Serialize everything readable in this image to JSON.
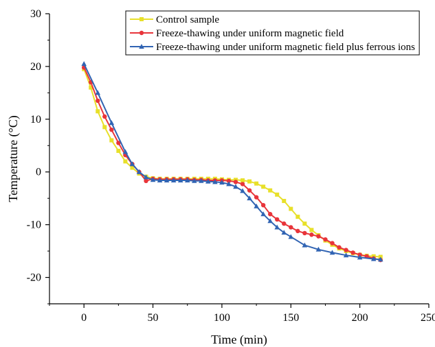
{
  "chart_data": {
    "type": "line",
    "title": "",
    "xlabel": "Time (min)",
    "ylabel": "Temperature (°C)",
    "xlim": [
      -25,
      250
    ],
    "ylim": [
      -25,
      30
    ],
    "xticks": [
      0,
      50,
      100,
      150,
      200,
      250
    ],
    "yticks": [
      -20,
      -10,
      0,
      10,
      20,
      30
    ],
    "grid": false,
    "legend_position": "top-right",
    "series": [
      {
        "name": "Control sample",
        "color": "#e8e02a",
        "marker": "square",
        "x": [
          0,
          5,
          10,
          15,
          20,
          25,
          30,
          35,
          40,
          45,
          50,
          55,
          60,
          65,
          70,
          75,
          80,
          85,
          90,
          95,
          100,
          105,
          110,
          115,
          120,
          125,
          130,
          135,
          140,
          145,
          150,
          155,
          160,
          165,
          170,
          175,
          180,
          185,
          190,
          195,
          200,
          205,
          210,
          215
        ],
        "y": [
          19.5,
          16.0,
          11.5,
          8.5,
          6.0,
          4.0,
          2.0,
          0.8,
          -0.3,
          -0.9,
          -1.2,
          -1.3,
          -1.3,
          -1.3,
          -1.3,
          -1.3,
          -1.3,
          -1.3,
          -1.3,
          -1.3,
          -1.4,
          -1.5,
          -1.5,
          -1.6,
          -1.8,
          -2.2,
          -2.8,
          -3.5,
          -4.3,
          -5.5,
          -7.0,
          -8.5,
          -9.8,
          -11.0,
          -12.0,
          -13.0,
          -13.8,
          -14.5,
          -15.0,
          -15.4,
          -15.7,
          -15.9,
          -16.0,
          -16.1
        ]
      },
      {
        "name": "Freeze-thawing under uniform magnetic field",
        "color": "#e8343a",
        "marker": "circle",
        "x": [
          0,
          5,
          10,
          15,
          20,
          25,
          30,
          35,
          40,
          45,
          50,
          55,
          60,
          65,
          70,
          75,
          80,
          85,
          90,
          95,
          100,
          105,
          110,
          115,
          120,
          125,
          130,
          135,
          140,
          145,
          150,
          155,
          160,
          165,
          170,
          175,
          180,
          185,
          190,
          195,
          200,
          205,
          210,
          215
        ],
        "y": [
          19.8,
          17.0,
          13.5,
          10.5,
          8.0,
          5.5,
          3.2,
          1.5,
          0.0,
          -1.7,
          -1.3,
          -1.4,
          -1.4,
          -1.4,
          -1.4,
          -1.4,
          -1.5,
          -1.5,
          -1.6,
          -1.6,
          -1.6,
          -1.7,
          -1.9,
          -2.3,
          -3.5,
          -4.8,
          -6.3,
          -8.0,
          -9.0,
          -9.8,
          -10.5,
          -11.2,
          -11.6,
          -11.9,
          -12.2,
          -12.8,
          -13.5,
          -14.3,
          -14.8,
          -15.3,
          -15.7,
          -16.0,
          -16.4,
          -16.7
        ]
      },
      {
        "name": "Freeze-thawing under uniform magnetic field plus ferrous ions",
        "color": "#3164b3",
        "marker": "triangle",
        "x": [
          0,
          10,
          20,
          30,
          35,
          40,
          45,
          50,
          55,
          60,
          65,
          70,
          75,
          80,
          85,
          90,
          95,
          100,
          105,
          110,
          115,
          120,
          125,
          130,
          135,
          140,
          145,
          150,
          160,
          170,
          180,
          190,
          200,
          210,
          215
        ],
        "y": [
          20.5,
          15.0,
          9.3,
          3.8,
          1.5,
          0.0,
          -1.0,
          -1.5,
          -1.6,
          -1.6,
          -1.6,
          -1.6,
          -1.6,
          -1.7,
          -1.7,
          -1.8,
          -1.9,
          -2.0,
          -2.3,
          -2.8,
          -3.6,
          -5.0,
          -6.5,
          -8.0,
          -9.3,
          -10.5,
          -11.5,
          -12.3,
          -13.9,
          -14.7,
          -15.3,
          -15.8,
          -16.2,
          -16.5,
          -16.6
        ]
      }
    ]
  }
}
